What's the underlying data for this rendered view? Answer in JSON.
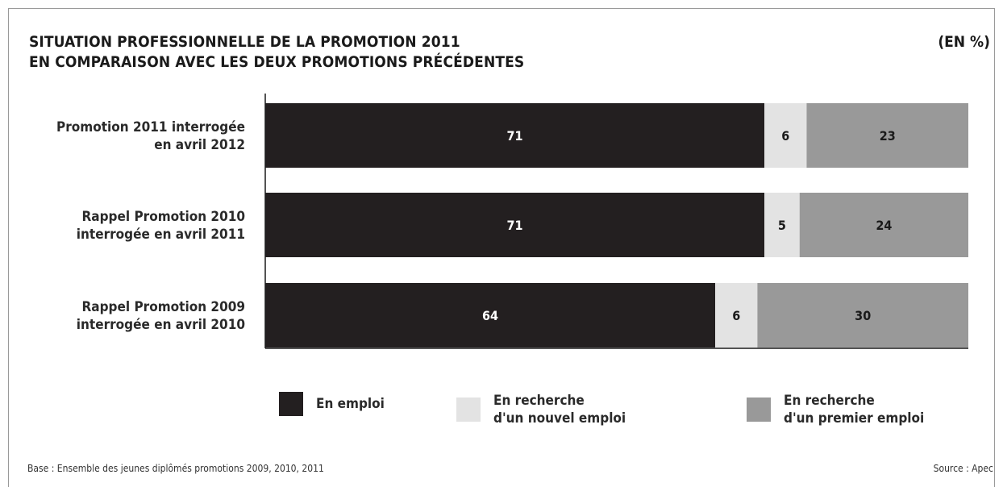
{
  "title_line1": "SITUATION PROFESSIONNELLE DE LA PROMOTION 2011",
  "title_line2": "EN COMPARAISON AVEC LES DEUX PROMOTIONS PRÉCÉDENTES",
  "unit": "(EN %)",
  "footer_base": "Base : Ensemble des jeunes diplômés promotions 2009, 2010, 2011",
  "footer_source": "Source : Apec",
  "colors": {
    "en_emploi": "#231f20",
    "recherche_nouvel": "#e3e3e3",
    "recherche_premier": "#999999"
  },
  "chart_data": {
    "type": "bar",
    "orientation": "horizontal",
    "stacked": true,
    "xlim": [
      0,
      100
    ],
    "categories": [
      [
        "Promotion 2011 interrogée",
        "en avril 2012"
      ],
      [
        "Rappel Promotion 2010",
        "interrogée en avril 2011"
      ],
      [
        "Rappel Promotion 2009",
        "interrogée en avril 2010"
      ]
    ],
    "series": [
      {
        "name": "En emploi",
        "values": [
          71,
          71,
          64
        ],
        "color": "#231f20",
        "label_color": "#ffffff"
      },
      {
        "name": "En recherche\nd'un nouvel emploi",
        "values": [
          6,
          5,
          6
        ],
        "color": "#e3e3e3",
        "label_color": "#1a1a1a"
      },
      {
        "name": "En recherche\nd'un premier emploi",
        "values": [
          23,
          24,
          30
        ],
        "color": "#999999",
        "label_color": "#1a1a1a"
      }
    ]
  }
}
